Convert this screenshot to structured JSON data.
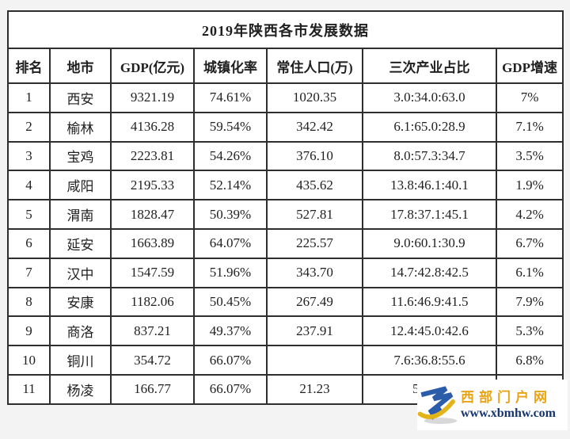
{
  "page": {
    "background": "#f3f3f3",
    "table_background": "#ffffff",
    "border_color": "#2e2e2e"
  },
  "table": {
    "title": "2019年陕西各市发展数据",
    "columns": [
      "排名",
      "地市",
      "GDP(亿元)",
      "城镇化率",
      "常住人口(万)",
      "三次产业占比",
      "GDP增速"
    ],
    "rows": [
      [
        "1",
        "西安",
        "9321.19",
        "74.61%",
        "1020.35",
        "3.0:34.0:63.0",
        "7%"
      ],
      [
        "2",
        "榆林",
        "4136.28",
        "59.54%",
        "342.42",
        "6.1:65.0:28.9",
        "7.1%"
      ],
      [
        "3",
        "宝鸡",
        "2223.81",
        "54.26%",
        "376.10",
        "8.0:57.3:34.7",
        "3.5%"
      ],
      [
        "4",
        "咸阳",
        "2195.33",
        "52.14%",
        "435.62",
        "13.8:46.1:40.1",
        "1.9%"
      ],
      [
        "5",
        "渭南",
        "1828.47",
        "50.39%",
        "527.81",
        "17.8:37.1:45.1",
        "4.2%"
      ],
      [
        "6",
        "延安",
        "1663.89",
        "64.07%",
        "225.57",
        "9.0:60.1:30.9",
        "6.7%"
      ],
      [
        "7",
        "汉中",
        "1547.59",
        "51.96%",
        "343.70",
        "14.7:42.8:42.5",
        "6.1%"
      ],
      [
        "8",
        "安康",
        "1182.06",
        "50.45%",
        "267.49",
        "11.6:46.9:41.5",
        "7.9%"
      ],
      [
        "9",
        "商洛",
        "837.21",
        "49.37%",
        "237.91",
        "12.4:45.0:42.6",
        "5.3%"
      ],
      [
        "10",
        "铜川",
        "354.72",
        "66.07%",
        "",
        "7.6:36.8:55.6",
        "6.8%"
      ],
      [
        "11",
        "杨凌",
        "166.77",
        "66.07%",
        "21.23",
        "5.1:47",
        ""
      ]
    ]
  },
  "watermark": {
    "site_name": "西部门户网",
    "site_url": "www.xbmhw.com",
    "colors": {
      "gold": "#E8A317",
      "navy": "#16356E",
      "logo_blue": "#2A5CAA",
      "logo_yellow": "#E3B418",
      "shadow_gray": "#d8d8d8"
    }
  }
}
